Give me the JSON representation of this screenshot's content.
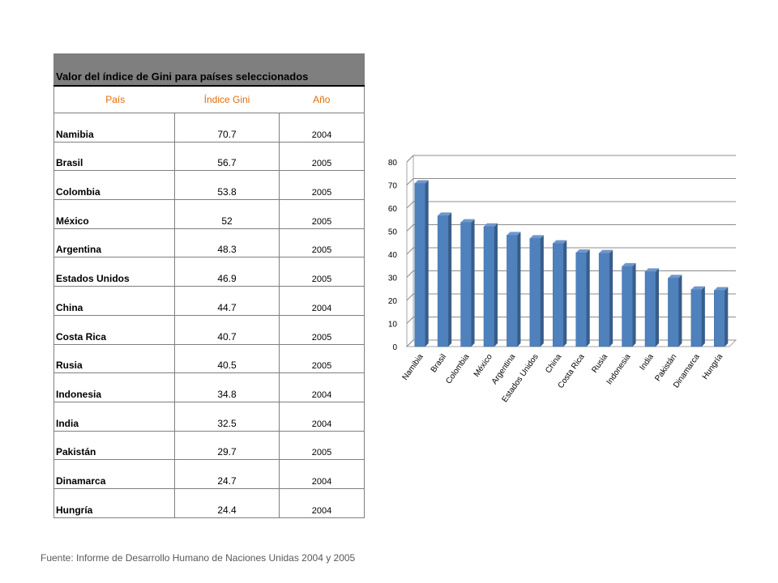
{
  "table": {
    "title": "Valor del índice de Gini para países seleccionados",
    "headers": [
      "País",
      "Índice Gini",
      "Año"
    ],
    "rows": [
      {
        "country": "Namibia",
        "gini": "70.7",
        "year": "2004"
      },
      {
        "country": "Brasil",
        "gini": "56.7",
        "year": "2005"
      },
      {
        "country": "Colombia",
        "gini": "53.8",
        "year": "2005"
      },
      {
        "country": "México",
        "gini": "52",
        "year": "2005"
      },
      {
        "country": "Argentina",
        "gini": "48.3",
        "year": "2005"
      },
      {
        "country": "Estados Unidos",
        "gini": "46.9",
        "year": "2005"
      },
      {
        "country": "China",
        "gini": "44.7",
        "year": "2004"
      },
      {
        "country": "Costa Rica",
        "gini": "40.7",
        "year": "2005"
      },
      {
        "country": "Rusia",
        "gini": "40.5",
        "year": "2005"
      },
      {
        "country": "Indonesia",
        "gini": "34.8",
        "year": "2004"
      },
      {
        "country": "India",
        "gini": "32.5",
        "year": "2004"
      },
      {
        "country": "Pakistán",
        "gini": "29.7",
        "year": "2005"
      },
      {
        "country": "Dinamarca",
        "gini": "24.7",
        "year": "2004"
      },
      {
        "country": "Hungría",
        "gini": "24.4",
        "year": "2004"
      }
    ]
  },
  "source_note": "Fuente: Informe de Desarrollo Humano de Naciones Unidas 2004 y 2005",
  "colors": {
    "bar": "#4f81bd",
    "bar_dark": "#385d8a",
    "header_text": "#e46c0a",
    "title_bg": "#7f7f7f"
  },
  "chart_data": {
    "type": "bar",
    "categories": [
      "Namibia",
      "Brasil",
      "Colombia",
      "México",
      "Argentina",
      "Estados Unidos",
      "China",
      "Costa Rica",
      "Rusia",
      "Indonesia",
      "India",
      "Pakistán",
      "Dinamarca",
      "Hungría"
    ],
    "values": [
      70.7,
      56.7,
      53.8,
      52,
      48.3,
      46.9,
      44.7,
      40.7,
      40.5,
      34.8,
      32.5,
      29.7,
      24.7,
      24.4
    ],
    "title": "",
    "xlabel": "",
    "ylabel": "",
    "ylim": [
      0,
      80
    ],
    "yticks": [
      0,
      10,
      20,
      30,
      40,
      50,
      60,
      70,
      80
    ],
    "grid": true,
    "legend": "none",
    "style": "3d-columns"
  }
}
